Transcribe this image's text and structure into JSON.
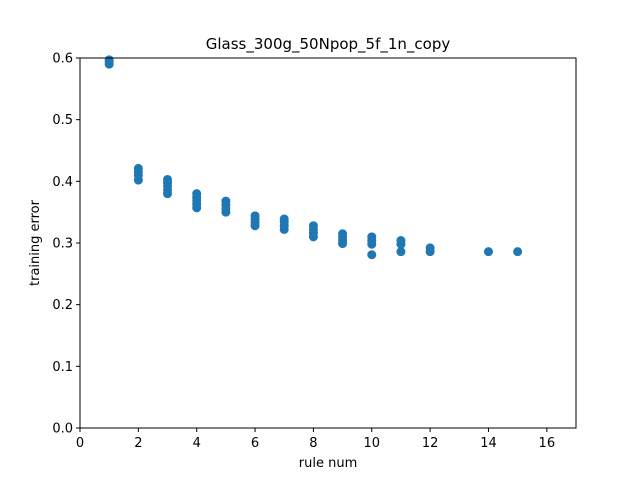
{
  "chart_data": {
    "type": "scatter",
    "title": "Glass_300g_50Npop_5f_1n_copy",
    "xlabel": "rule num",
    "ylabel": "training error",
    "xlim": [
      0,
      17
    ],
    "ylim": [
      0,
      0.6
    ],
    "xticks": [
      "0",
      "2",
      "4",
      "6",
      "8",
      "10",
      "12",
      "14",
      "16"
    ],
    "yticks": [
      "0.0",
      "0.1",
      "0.2",
      "0.3",
      "0.4",
      "0.5",
      "0.6"
    ],
    "grid": false,
    "marker_color": "#1f77b4",
    "points": [
      {
        "x": 1,
        "y": 0.59
      },
      {
        "x": 1,
        "y": 0.594
      },
      {
        "x": 1,
        "y": 0.597
      },
      {
        "x": 2,
        "y": 0.402
      },
      {
        "x": 2,
        "y": 0.41
      },
      {
        "x": 2,
        "y": 0.416
      },
      {
        "x": 2,
        "y": 0.421
      },
      {
        "x": 3,
        "y": 0.38
      },
      {
        "x": 3,
        "y": 0.386
      },
      {
        "x": 3,
        "y": 0.392
      },
      {
        "x": 3,
        "y": 0.398
      },
      {
        "x": 3,
        "y": 0.403
      },
      {
        "x": 4,
        "y": 0.357
      },
      {
        "x": 4,
        "y": 0.363
      },
      {
        "x": 4,
        "y": 0.369
      },
      {
        "x": 4,
        "y": 0.374
      },
      {
        "x": 4,
        "y": 0.38
      },
      {
        "x": 5,
        "y": 0.35
      },
      {
        "x": 5,
        "y": 0.356
      },
      {
        "x": 5,
        "y": 0.362
      },
      {
        "x": 5,
        "y": 0.368
      },
      {
        "x": 6,
        "y": 0.328
      },
      {
        "x": 6,
        "y": 0.333
      },
      {
        "x": 6,
        "y": 0.339
      },
      {
        "x": 6,
        "y": 0.344
      },
      {
        "x": 7,
        "y": 0.322
      },
      {
        "x": 7,
        "y": 0.328
      },
      {
        "x": 7,
        "y": 0.334
      },
      {
        "x": 7,
        "y": 0.339
      },
      {
        "x": 8,
        "y": 0.31
      },
      {
        "x": 8,
        "y": 0.316
      },
      {
        "x": 8,
        "y": 0.322
      },
      {
        "x": 8,
        "y": 0.328
      },
      {
        "x": 9,
        "y": 0.299
      },
      {
        "x": 9,
        "y": 0.304
      },
      {
        "x": 9,
        "y": 0.31
      },
      {
        "x": 9,
        "y": 0.315
      },
      {
        "x": 10,
        "y": 0.281
      },
      {
        "x": 10,
        "y": 0.298
      },
      {
        "x": 10,
        "y": 0.304
      },
      {
        "x": 10,
        "y": 0.31
      },
      {
        "x": 11,
        "y": 0.286
      },
      {
        "x": 11,
        "y": 0.298
      },
      {
        "x": 11,
        "y": 0.304
      },
      {
        "x": 12,
        "y": 0.286
      },
      {
        "x": 12,
        "y": 0.292
      },
      {
        "x": 14,
        "y": 0.286
      },
      {
        "x": 15,
        "y": 0.286
      }
    ]
  }
}
